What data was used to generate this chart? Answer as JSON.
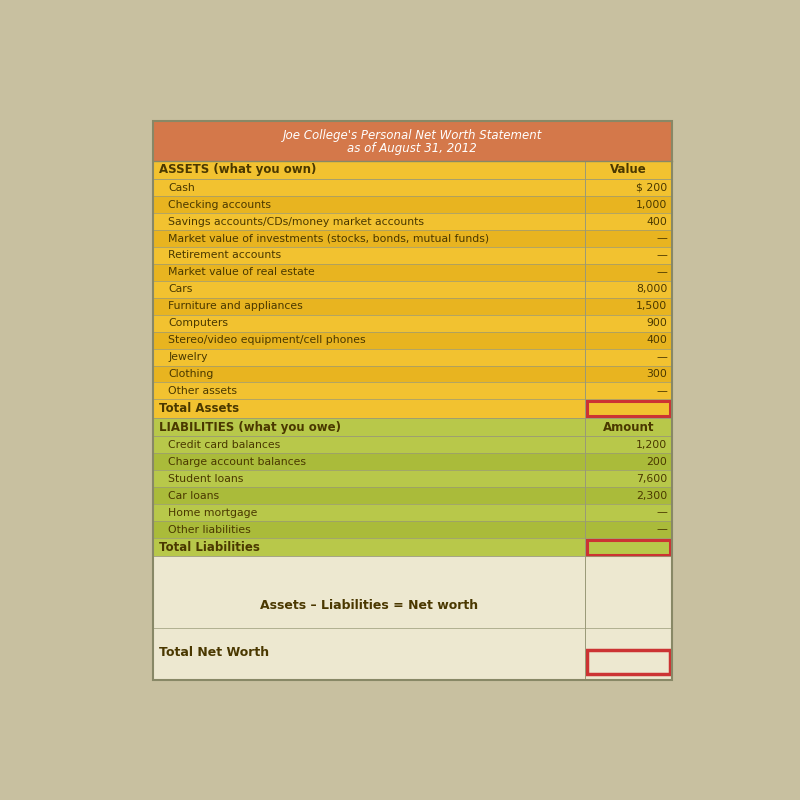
{
  "title_line1": "Joe College's Personal Net Worth Statement",
  "title_line2": "as of August 31, 2012",
  "title_bg": "#D4784A",
  "assets_bg_light": "#F2C230",
  "assets_bg_dark": "#E8B420",
  "liabilities_bg_light": "#B8C84A",
  "liabilities_bg_dark": "#AABB3A",
  "footer_bg": "#EDE8D0",
  "red_box_color": "#CC3333",
  "border_color": "#999977",
  "outer_border_color": "#888866",
  "text_dark": "#4A3800",
  "text_white": "#FFFFFF",
  "bg_color": "#C8C0A0",
  "assets_header": "ASSETS (what you own)",
  "assets_col_header": "Value",
  "assets_rows": [
    [
      "Cash",
      "$ 200"
    ],
    [
      "Checking accounts",
      "1,000"
    ],
    [
      "Savings accounts/CDs/money market accounts",
      "400"
    ],
    [
      "Market value of investments (stocks, bonds, mutual funds)",
      "—"
    ],
    [
      "Retirement accounts",
      "—"
    ],
    [
      "Market value of real estate",
      "—"
    ],
    [
      "Cars",
      "8,000"
    ],
    [
      "Furniture and appliances",
      "1,500"
    ],
    [
      "Computers",
      "900"
    ],
    [
      "Stereo/video equipment/cell phones",
      "400"
    ],
    [
      "Jewelry",
      "—"
    ],
    [
      "Clothing",
      "300"
    ],
    [
      "Other assets",
      "—"
    ]
  ],
  "total_assets_label": "Total Assets",
  "liabilities_header": "LIABILITIES (what you owe)",
  "liabilities_col_header": "Amount",
  "liabilities_rows": [
    [
      "Credit card balances",
      "1,200"
    ],
    [
      "Charge account balances",
      "200"
    ],
    [
      "Student loans",
      "7,600"
    ],
    [
      "Car loans",
      "2,300"
    ],
    [
      "Home mortgage",
      "—"
    ],
    [
      "Other liabilities",
      "—"
    ]
  ],
  "total_liabilities_label": "Total Liabilities",
  "net_worth_formula": "Assets – Liabilities = Net worth",
  "total_net_worth_label": "Total Net Worth"
}
